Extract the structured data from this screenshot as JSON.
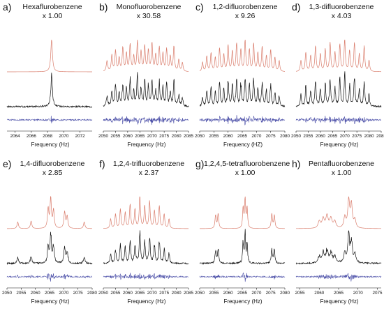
{
  "x_axis_label": "Frequency (Hz)",
  "colors": {
    "simulated": "#d97b6a",
    "experimental": "#111111",
    "residual": "#4b4fa8"
  },
  "chart_data": [
    {
      "id": "a",
      "label": "a)",
      "title": "Hexaflurobenzene",
      "scale": "x 1.00",
      "xlabel": "Frequency (Hz)",
      "xlim": [
        2063,
        2073.5
      ],
      "ticks": [
        2064,
        2066,
        2068,
        2070,
        2072
      ],
      "type": "line",
      "series": [
        {
          "name": "simulated"
        },
        {
          "name": "experimental"
        },
        {
          "name": "residual"
        }
      ],
      "peaks": [
        [
          2068.5,
          1.0,
          0.12
        ]
      ]
    },
    {
      "id": "b",
      "label": "b)",
      "title": "Monofluorobenzene",
      "scale": "x 30.58",
      "xlabel": "Frequency (Hz)",
      "xlim": [
        2050,
        2085
      ],
      "ticks": [
        2050,
        2055,
        2060,
        2065,
        2070,
        2075,
        2080,
        2085
      ],
      "type": "line",
      "series": [
        {
          "name": "simulated"
        },
        {
          "name": "experimental"
        },
        {
          "name": "residual"
        }
      ],
      "peaks": [
        [
          2051.5,
          0.35,
          0.35
        ],
        [
          2053.5,
          0.55,
          0.3
        ],
        [
          2055,
          0.7,
          0.3
        ],
        [
          2056.5,
          0.45,
          0.3
        ],
        [
          2058,
          0.8,
          0.3
        ],
        [
          2059.5,
          0.6,
          0.3
        ],
        [
          2061,
          0.9,
          0.3
        ],
        [
          2062.5,
          0.5,
          0.3
        ],
        [
          2064,
          1.0,
          0.3
        ],
        [
          2065.5,
          0.65,
          0.3
        ],
        [
          2067,
          0.85,
          0.3
        ],
        [
          2068.5,
          0.7,
          0.3
        ],
        [
          2070,
          0.95,
          0.3
        ],
        [
          2071.5,
          0.55,
          0.3
        ],
        [
          2073,
          0.8,
          0.3
        ],
        [
          2074.5,
          0.6,
          0.3
        ],
        [
          2076,
          0.75,
          0.3
        ],
        [
          2077.5,
          0.5,
          0.3
        ],
        [
          2079,
          0.85,
          0.3
        ],
        [
          2081,
          0.4,
          0.3
        ],
        [
          2082.5,
          0.3,
          0.3
        ]
      ]
    },
    {
      "id": "c",
      "label": "c)",
      "title": "1,2-difluorobenzene",
      "scale": "x 9.26",
      "xlabel": "Frequency (HZ)",
      "xlim": [
        2050,
        2080
      ],
      "ticks": [
        2050,
        2055,
        2060,
        2065,
        2070,
        2075,
        2080
      ],
      "type": "line",
      "series": [
        {
          "name": "simulated"
        },
        {
          "name": "experimental"
        },
        {
          "name": "residual"
        }
      ],
      "peaks": [
        [
          2051,
          0.3,
          0.25
        ],
        [
          2052.5,
          0.5,
          0.25
        ],
        [
          2054,
          0.6,
          0.25
        ],
        [
          2055.5,
          0.45,
          0.25
        ],
        [
          2057,
          0.75,
          0.25
        ],
        [
          2058.5,
          0.55,
          0.25
        ],
        [
          2060,
          0.85,
          0.25
        ],
        [
          2061.5,
          0.65,
          0.25
        ],
        [
          2063,
          0.9,
          0.25
        ],
        [
          2064.5,
          0.7,
          0.25
        ],
        [
          2066,
          1.0,
          0.25
        ],
        [
          2067.5,
          0.7,
          0.25
        ],
        [
          2069,
          0.9,
          0.25
        ],
        [
          2070.5,
          0.6,
          0.25
        ],
        [
          2072,
          0.8,
          0.25
        ],
        [
          2073.5,
          0.5,
          0.25
        ],
        [
          2075,
          0.7,
          0.25
        ],
        [
          2076.5,
          0.45,
          0.25
        ],
        [
          2078,
          0.35,
          0.25
        ]
      ]
    },
    {
      "id": "d",
      "label": "d)",
      "title": "1,3-difluorobenzene",
      "scale": "x 4.03",
      "xlabel": "Frequency (Hz)",
      "xlim": [
        2050,
        2085
      ],
      "ticks": [
        2050,
        2055,
        2060,
        2065,
        2070,
        2075,
        2080,
        2085
      ],
      "type": "line",
      "series": [
        {
          "name": "simulated"
        },
        {
          "name": "experimental"
        },
        {
          "name": "residual"
        }
      ],
      "peaks": [
        [
          2052,
          0.35,
          0.3
        ],
        [
          2054,
          0.6,
          0.3
        ],
        [
          2056,
          0.5,
          0.3
        ],
        [
          2058,
          0.8,
          0.3
        ],
        [
          2060,
          0.55,
          0.3
        ],
        [
          2062,
          0.7,
          0.3
        ],
        [
          2064,
          0.9,
          0.3
        ],
        [
          2066,
          0.6,
          0.3
        ],
        [
          2068,
          0.85,
          0.3
        ],
        [
          2070,
          1.0,
          0.3
        ],
        [
          2072,
          0.65,
          0.3
        ],
        [
          2074,
          0.9,
          0.3
        ],
        [
          2076,
          0.55,
          0.3
        ],
        [
          2078,
          0.8,
          0.3
        ],
        [
          2080,
          0.35,
          0.3
        ]
      ]
    },
    {
      "id": "e",
      "label": "e)",
      "title": "1,4-difluorobenzene",
      "scale": "x 2.85",
      "xlabel": "Frequency (Hz)",
      "xlim": [
        2050,
        2080
      ],
      "ticks": [
        2050,
        2055,
        2060,
        2065,
        2070,
        2075,
        2080
      ],
      "type": "line",
      "series": [
        {
          "name": "simulated"
        },
        {
          "name": "experimental"
        },
        {
          "name": "residual"
        }
      ],
      "peaks": [
        [
          2053.8,
          0.22,
          0.3
        ],
        [
          2058.5,
          0.25,
          0.3
        ],
        [
          2064.5,
          0.65,
          0.28
        ],
        [
          2065.4,
          1.0,
          0.28
        ],
        [
          2066.4,
          0.6,
          0.28
        ],
        [
          2070.3,
          0.55,
          0.3
        ],
        [
          2071.2,
          0.4,
          0.3
        ],
        [
          2077.2,
          0.22,
          0.3
        ]
      ]
    },
    {
      "id": "f",
      "label": "f)",
      "title": "1,2,4-trifluorobenzene",
      "scale": "x 2.37",
      "xlabel": "Frequency (Hz)",
      "xlim": [
        2050,
        2085
      ],
      "ticks": [
        2050,
        2055,
        2060,
        2065,
        2070,
        2075,
        2080,
        2085
      ],
      "type": "line",
      "series": [
        {
          "name": "simulated"
        },
        {
          "name": "experimental"
        },
        {
          "name": "residual"
        }
      ],
      "peaks": [
        [
          2053,
          0.3,
          0.3
        ],
        [
          2055,
          0.45,
          0.3
        ],
        [
          2057,
          0.6,
          0.3
        ],
        [
          2059,
          0.5,
          0.3
        ],
        [
          2061,
          0.75,
          0.3
        ],
        [
          2063,
          0.6,
          0.3
        ],
        [
          2065,
          1.0,
          0.3
        ],
        [
          2067,
          0.7,
          0.3
        ],
        [
          2069,
          0.85,
          0.3
        ],
        [
          2071,
          0.55,
          0.3
        ],
        [
          2073,
          0.7,
          0.3
        ],
        [
          2075,
          0.45,
          0.3
        ],
        [
          2077,
          0.3,
          0.3
        ]
      ]
    },
    {
      "id": "g",
      "label": "g)",
      "title": "1,2,4,5-tetrafluorobenzene",
      "scale": "x 1.00",
      "xlabel": "Frequency (Hz)",
      "xlim": [
        2050,
        2080
      ],
      "ticks": [
        2050,
        2055,
        2060,
        2065,
        2070,
        2075,
        2080
      ],
      "type": "line",
      "series": [
        {
          "name": "simulated"
        },
        {
          "name": "experimental"
        },
        {
          "name": "residual"
        }
      ],
      "peaks": [
        [
          2055.6,
          0.45,
          0.25
        ],
        [
          2056.5,
          0.5,
          0.25
        ],
        [
          2065.3,
          0.7,
          0.22
        ],
        [
          2066,
          1.0,
          0.22
        ],
        [
          2066.7,
          0.7,
          0.22
        ],
        [
          2075.4,
          0.5,
          0.25
        ],
        [
          2076.3,
          0.45,
          0.25
        ]
      ]
    },
    {
      "id": "h",
      "label": "h)",
      "title": "Pentafluorobenzene",
      "scale": "x 1.00",
      "xlabel": "Frequency (Hz)",
      "xlim": [
        2054,
        2076
      ],
      "ticks": [
        2055,
        2060,
        2065,
        2070,
        2075
      ],
      "type": "line",
      "series": [
        {
          "name": "simulated"
        },
        {
          "name": "experimental"
        },
        {
          "name": "residual"
        }
      ],
      "peaks": [
        [
          2060,
          0.25,
          0.35
        ],
        [
          2061,
          0.35,
          0.35
        ],
        [
          2062,
          0.45,
          0.35
        ],
        [
          2063,
          0.35,
          0.35
        ],
        [
          2064,
          0.25,
          0.35
        ],
        [
          2066.6,
          0.4,
          0.3
        ],
        [
          2067.6,
          1.0,
          0.28
        ],
        [
          2068.3,
          0.85,
          0.28
        ],
        [
          2069.2,
          0.3,
          0.3
        ]
      ]
    }
  ]
}
